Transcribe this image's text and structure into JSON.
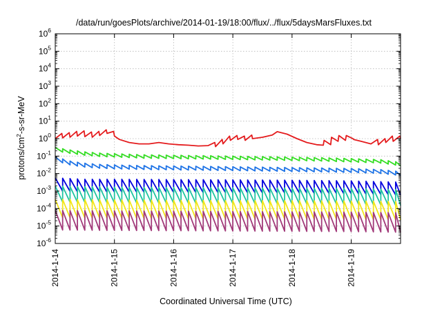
{
  "chart_data": {
    "type": "line",
    "title": "/data/run/goesPlots/archive/2014-01-19/18:00/flux/../flux/5daysMarsFluxes.txt",
    "xlabel": "Coordinated Universal Time (UTC)",
    "ylabel": "protons/cm2-s-sr-MeV",
    "ylabel_parts": {
      "pre": "protons/cm",
      "sup": "2",
      "post": "-s-sr-MeV"
    },
    "yscale": "log",
    "ylim": [
      1e-06,
      1000000.0
    ],
    "xlim": [
      "2014-01-14 00:00",
      "2014-01-19 20:00"
    ],
    "x_ticks": [
      "2014-1-14",
      "2014-1-15",
      "2014-1-16",
      "2014-1-17",
      "2014-1-18",
      "2014-1-19"
    ],
    "y_ticks": [
      {
        "base": "10",
        "exp": "-6",
        "value": 1e-06
      },
      {
        "base": "10",
        "exp": "-5",
        "value": 1e-05
      },
      {
        "base": "10",
        "exp": "-4",
        "value": 0.0001
      },
      {
        "base": "10",
        "exp": "-3",
        "value": 0.001
      },
      {
        "base": "10",
        "exp": "-2",
        "value": 0.01
      },
      {
        "base": "10",
        "exp": "-1",
        "value": 0.1
      },
      {
        "base": "10",
        "exp": "0",
        "value": 1
      },
      {
        "base": "10",
        "exp": "1",
        "value": 10
      },
      {
        "base": "10",
        "exp": "2",
        "value": 100
      },
      {
        "base": "10",
        "exp": "3",
        "value": 1000
      },
      {
        "base": "10",
        "exp": "4",
        "value": 10000
      },
      {
        "base": "10",
        "exp": "5",
        "value": 100000
      },
      {
        "base": "10",
        "exp": "6",
        "value": 1000000
      }
    ],
    "grid": true,
    "series": [
      {
        "color": "#e41a1c",
        "x_dates": [
          "2014-01-14 00:00",
          "2014-01-14 02:40",
          "2014-01-14 03:00",
          "2014-01-14 05:40",
          "2014-01-14 06:00",
          "2014-01-14 08:40",
          "2014-01-14 09:00",
          "2014-01-14 11:40",
          "2014-01-14 12:00",
          "2014-01-14 14:40",
          "2014-01-14 15:00",
          "2014-01-14 17:40",
          "2014-01-14 18:00",
          "2014-01-14 20:40",
          "2014-01-14 21:00",
          "2014-01-14 23:40",
          "2014-01-15 00:00",
          "2014-01-15 02:00",
          "2014-01-15 06:00",
          "2014-01-15 10:00",
          "2014-01-15 14:00",
          "2014-01-15 18:00",
          "2014-01-15 22:00",
          "2014-01-16 02:00",
          "2014-01-16 06:00",
          "2014-01-16 10:00",
          "2014-01-16 14:00",
          "2014-01-16 16:40",
          "2014-01-16 17:00",
          "2014-01-16 19:40",
          "2014-01-16 20:00",
          "2014-01-16 22:40",
          "2014-01-16 23:00",
          "2014-01-17 01:40",
          "2014-01-17 02:00",
          "2014-01-17 04:40",
          "2014-01-17 05:00",
          "2014-01-17 07:40",
          "2014-01-17 08:00",
          "2014-01-17 12:00",
          "2014-01-17 16:00",
          "2014-01-17 18:00",
          "2014-01-17 22:00",
          "2014-01-18 02:00",
          "2014-01-18 06:00",
          "2014-01-18 10:00",
          "2014-01-18 12:40",
          "2014-01-18 13:00",
          "2014-01-18 15:40",
          "2014-01-18 16:00",
          "2014-01-18 18:40",
          "2014-01-18 19:00",
          "2014-01-18 21:40",
          "2014-01-18 22:00",
          "2014-01-19 00:40",
          "2014-01-19 01:00",
          "2014-01-19 04:00",
          "2014-01-19 08:00",
          "2014-01-19 10:40",
          "2014-01-19 11:00",
          "2014-01-19 13:40",
          "2014-01-19 14:00",
          "2014-01-19 16:40",
          "2014-01-19 17:00",
          "2014-01-19 19:40",
          "2014-01-19 20:00"
        ],
        "y": [
          1.0,
          2.0,
          1.1,
          2.2,
          1.2,
          2.6,
          1.4,
          2.8,
          1.3,
          2.4,
          1.2,
          2.6,
          1.5,
          3.2,
          2.0,
          2.6,
          1.4,
          0.9,
          0.6,
          0.5,
          0.5,
          0.6,
          0.5,
          0.45,
          0.42,
          0.38,
          0.4,
          0.6,
          0.35,
          0.9,
          0.5,
          1.4,
          0.8,
          1.5,
          0.9,
          1.4,
          0.8,
          1.6,
          1.0,
          1.2,
          1.6,
          2.5,
          1.8,
          1.0,
          0.6,
          0.45,
          0.42,
          0.8,
          0.45,
          1.2,
          0.7,
          1.5,
          0.8,
          1.5,
          1.0,
          0.9,
          0.7,
          0.5,
          0.9,
          0.45,
          1.0,
          0.6,
          1.4,
          0.7,
          1.4,
          1.0
        ]
      },
      {
        "color": "#33dd22",
        "x_dates": [
          "2014-01-14 00:00",
          "2014-01-14 06:00",
          "2014-01-14 12:00",
          "2014-01-14 18:00",
          "2014-01-15 00:00",
          "2014-01-15 12:00",
          "2014-01-16 00:00",
          "2014-01-16 12:00",
          "2014-01-17 00:00",
          "2014-01-17 12:00",
          "2014-01-18 00:00",
          "2014-01-18 12:00",
          "2014-01-19 00:00",
          "2014-01-19 12:00",
          "2014-01-19 20:00"
        ],
        "y": [
          0.25,
          0.18,
          0.14,
          0.12,
          0.11,
          0.095,
          0.09,
          0.085,
          0.08,
          0.075,
          0.07,
          0.065,
          0.058,
          0.05,
          0.035
        ]
      },
      {
        "color": "#1e73e6",
        "x_dates": [
          "2014-01-14 00:00",
          "2014-01-14 06:00",
          "2014-01-14 12:00",
          "2014-01-14 18:00",
          "2014-01-15 00:00",
          "2014-01-15 12:00",
          "2014-01-16 00:00",
          "2014-01-16 12:00",
          "2014-01-17 00:00",
          "2014-01-17 12:00",
          "2014-01-18 00:00",
          "2014-01-18 12:00",
          "2014-01-19 00:00",
          "2014-01-19 12:00",
          "2014-01-19 20:00"
        ],
        "y": [
          0.07,
          0.04,
          0.03,
          0.026,
          0.024,
          0.022,
          0.021,
          0.02,
          0.019,
          0.018,
          0.017,
          0.016,
          0.015,
          0.013,
          0.01
        ]
      },
      {
        "color": "#0000dd",
        "x_dates": [
          "2014-01-14 00:00",
          "2014-01-14 12:00",
          "2014-01-15 00:00",
          "2014-01-16 00:00",
          "2014-01-17 00:00",
          "2014-01-18 00:00",
          "2014-01-19 00:00",
          "2014-01-19 20:00"
        ],
        "y": [
          0.003,
          0.0025,
          0.0025,
          0.0024,
          0.0023,
          0.0022,
          0.002,
          0.0017
        ]
      },
      {
        "color": "#1fc4a0",
        "x_dates": [
          "2014-01-14 00:00",
          "2014-01-15 00:00",
          "2014-01-16 00:00",
          "2014-01-17 00:00",
          "2014-01-18 00:00",
          "2014-01-19 00:00",
          "2014-01-19 20:00"
        ],
        "y": [
          0.0008,
          0.0007,
          0.00068,
          0.00065,
          0.00062,
          0.0006,
          0.0005
        ]
      },
      {
        "color": "#f2e61a",
        "x_dates": [
          "2014-01-14 00:00",
          "2014-01-15 00:00",
          "2014-01-16 00:00",
          "2014-01-17 00:00",
          "2014-01-18 00:00",
          "2014-01-19 00:00",
          "2014-01-19 20:00"
        ],
        "y": [
          0.00012,
          0.00011,
          0.000105,
          0.0001,
          0.0001,
          9.5e-05,
          9e-05
        ]
      },
      {
        "color": "#a23a7a",
        "x_dates": [
          "2014-01-14 00:00",
          "2014-01-15 00:00",
          "2014-01-16 00:00",
          "2014-01-17 00:00",
          "2014-01-18 00:00",
          "2014-01-19 00:00",
          "2014-01-19 20:00"
        ],
        "y": [
          3e-05,
          2.8e-05,
          2.7e-05,
          2.6e-05,
          2.5e-05,
          2.4e-05,
          2.2e-05
        ]
      }
    ],
    "sawtooth": {
      "period_hours": 3,
      "series_ranges": [
        null,
        [
          0.8,
          1.25
        ],
        [
          0.78,
          1.3
        ],
        [
          0.35,
          1.9
        ],
        [
          0.3,
          2.4
        ],
        [
          0.25,
          2.8
        ],
        [
          0.2,
          2.6
        ]
      ]
    }
  }
}
